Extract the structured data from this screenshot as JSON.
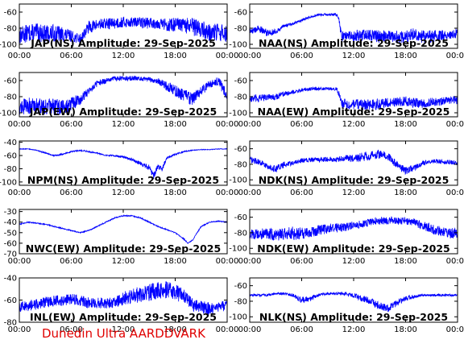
{
  "colors": {
    "trace": "#0000ff",
    "axis": "#000000",
    "footer": "#e00000"
  },
  "footer": {
    "label": "Dunedin Ultra AARDDVARK"
  },
  "x_ticks": [
    "00:00",
    "06:00",
    "12:00",
    "18:00",
    "00:00"
  ],
  "chart_data": [
    {
      "type": "line",
      "title": "JAP(NS) Amplitude: 29-Sep-2025",
      "xlim": [
        0,
        24
      ],
      "ylim": [
        -105,
        -50
      ],
      "y_ticks": [
        -60,
        -80,
        -100
      ],
      "x": [
        0,
        1,
        2,
        3,
        4,
        5,
        6,
        7,
        8,
        9,
        10,
        11,
        12,
        13,
        14,
        15,
        16,
        17,
        18,
        19,
        20,
        21,
        22,
        23,
        24
      ],
      "values": [
        -88,
        -85,
        -84,
        -86,
        -85,
        -87,
        -89,
        -93,
        -78,
        -75,
        -74,
        -73,
        -72,
        -72,
        -72,
        -73,
        -73,
        -75,
        -75,
        -76,
        -77,
        -80,
        -85,
        -84,
        -86
      ],
      "noise": [
        22,
        22,
        22,
        22,
        22,
        20,
        14,
        12,
        16,
        14,
        14,
        14,
        14,
        12,
        14,
        14,
        14,
        16,
        18,
        20,
        22,
        22,
        22,
        22,
        22
      ]
    },
    {
      "type": "line",
      "title": "NAA(NS) Amplitude: 29-Sep-2025",
      "xlim": [
        0,
        24
      ],
      "ylim": [
        -105,
        -50
      ],
      "y_ticks": [
        -60,
        -80,
        -100
      ],
      "x": [
        0,
        1,
        2,
        3,
        4,
        5,
        6,
        7,
        8,
        9,
        10,
        10.3,
        10.6,
        11,
        12,
        13,
        14,
        15,
        16,
        17,
        18,
        19,
        20,
        21,
        22,
        23,
        24
      ],
      "values": [
        -84,
        -80,
        -85,
        -84,
        -77,
        -74,
        -70,
        -66,
        -63,
        -63,
        -63,
        -68,
        -90,
        -88,
        -89,
        -88,
        -88,
        -90,
        -88,
        -90,
        -90,
        -86,
        -90,
        -90,
        -88,
        -88,
        -85
      ],
      "noise": [
        8,
        8,
        10,
        6,
        4,
        4,
        3,
        3,
        3,
        3,
        3,
        6,
        14,
        12,
        14,
        14,
        14,
        16,
        14,
        16,
        16,
        14,
        16,
        16,
        14,
        12,
        12
      ]
    },
    {
      "type": "line",
      "title": "JAP(EW) Amplitude: 29-Sep-2025",
      "xlim": [
        0,
        24
      ],
      "ylim": [
        -105,
        -50
      ],
      "y_ticks": [
        -60,
        -80,
        -100
      ],
      "x": [
        0,
        1,
        2,
        3,
        4,
        5,
        6,
        7,
        8,
        9,
        10,
        11,
        12,
        13,
        14,
        15,
        16,
        17,
        18,
        19,
        20,
        21,
        22,
        23,
        24
      ],
      "values": [
        -92,
        -90,
        -90,
        -91,
        -92,
        -92,
        -88,
        -83,
        -72,
        -63,
        -60,
        -57,
        -57,
        -57,
        -57,
        -58,
        -60,
        -66,
        -72,
        -78,
        -82,
        -72,
        -64,
        -60,
        -78
      ],
      "noise": [
        20,
        20,
        20,
        20,
        20,
        20,
        18,
        14,
        10,
        8,
        6,
        6,
        6,
        6,
        6,
        6,
        8,
        12,
        14,
        16,
        16,
        12,
        10,
        10,
        20
      ]
    },
    {
      "type": "line",
      "title": "NAA(EW) Amplitude: 29-Sep-2025",
      "xlim": [
        0,
        24
      ],
      "ylim": [
        -105,
        -50
      ],
      "y_ticks": [
        -60,
        -80,
        -100
      ],
      "x": [
        0,
        1,
        2,
        3,
        4,
        5,
        6,
        7,
        8,
        9,
        10,
        10.3,
        10.6,
        11,
        12,
        13,
        14,
        15,
        16,
        17,
        18,
        19,
        20,
        21,
        22,
        23,
        24
      ],
      "values": [
        -82,
        -82,
        -80,
        -80,
        -76,
        -74,
        -72,
        -70,
        -70,
        -70,
        -70,
        -76,
        -88,
        -88,
        -89,
        -89,
        -89,
        -88,
        -87,
        -86,
        -85,
        -87,
        -88,
        -86,
        -86,
        -84,
        -84
      ],
      "noise": [
        10,
        10,
        8,
        8,
        6,
        5,
        5,
        4,
        4,
        4,
        4,
        8,
        12,
        12,
        12,
        14,
        14,
        14,
        12,
        12,
        12,
        12,
        12,
        10,
        10,
        10,
        10
      ]
    },
    {
      "type": "line",
      "title": "NPM(NS) Amplitude: 29-Sep-2025",
      "xlim": [
        0,
        24
      ],
      "ylim": [
        -105,
        -38
      ],
      "y_ticks": [
        -40,
        -60,
        -80,
        -100
      ],
      "x": [
        0,
        1,
        2,
        3,
        4,
        5,
        6,
        7,
        8,
        9,
        10,
        11,
        12,
        13,
        14,
        15,
        15.5,
        16,
        16.5,
        17,
        18,
        19,
        20,
        21,
        22,
        23,
        24
      ],
      "values": [
        -50,
        -50,
        -52,
        -56,
        -60,
        -58,
        -54,
        -52,
        -54,
        -56,
        -60,
        -60,
        -62,
        -66,
        -72,
        -78,
        -90,
        -76,
        -80,
        -64,
        -58,
        -54,
        -52,
        -51,
        -51,
        -50,
        -50
      ],
      "noise": [
        1,
        1,
        1,
        2,
        2,
        2,
        2,
        2,
        2,
        2,
        2,
        3,
        3,
        4,
        6,
        8,
        10,
        8,
        8,
        4,
        2,
        2,
        1,
        1,
        1,
        1,
        1
      ]
    },
    {
      "type": "line",
      "title": "NDK(NS) Amplitude: 29-Sep-2025",
      "xlim": [
        0,
        24
      ],
      "ylim": [
        -107,
        -50
      ],
      "y_ticks": [
        -60,
        -80,
        -100
      ],
      "x": [
        0,
        1,
        2,
        3,
        4,
        5,
        6,
        7,
        8,
        9,
        10,
        11,
        12,
        13,
        14,
        15,
        16,
        17,
        18,
        19,
        20,
        21,
        22,
        23,
        24
      ],
      "values": [
        -74,
        -76,
        -82,
        -86,
        -80,
        -78,
        -75,
        -74,
        -74,
        -73,
        -74,
        -72,
        -72,
        -70,
        -68,
        -66,
        -70,
        -80,
        -88,
        -84,
        -78,
        -76,
        -76,
        -77,
        -78
      ],
      "noise": [
        8,
        8,
        8,
        10,
        8,
        6,
        6,
        6,
        6,
        6,
        6,
        8,
        10,
        12,
        12,
        12,
        10,
        10,
        10,
        8,
        6,
        6,
        6,
        6,
        6
      ]
    },
    {
      "type": "line",
      "title": "NWC(EW) Amplitude: 29-Sep-2025",
      "xlim": [
        0,
        24
      ],
      "ylim": [
        -70,
        -28
      ],
      "y_ticks": [
        -30,
        -40,
        -50,
        -60,
        -70
      ],
      "x": [
        0,
        1,
        2,
        3,
        4,
        5,
        6,
        7,
        8,
        9,
        10,
        11,
        12,
        13,
        14,
        15,
        16,
        17,
        18,
        19,
        19.5,
        20,
        21,
        22,
        23,
        24
      ],
      "values": [
        -42,
        -40,
        -41,
        -42,
        -44,
        -46,
        -48,
        -50,
        -48,
        -44,
        -40,
        -36,
        -34,
        -34,
        -36,
        -40,
        -44,
        -47,
        -50,
        -56,
        -60,
        -57,
        -44,
        -40,
        -39,
        -40
      ],
      "noise": [
        1,
        1,
        1,
        1,
        1,
        1,
        1,
        1,
        1,
        1,
        1,
        1,
        1,
        1,
        1,
        1,
        1,
        1,
        1,
        1,
        1,
        1,
        1,
        1,
        1,
        1
      ]
    },
    {
      "type": "line",
      "title": "NDK(EW) Amplitude: 29-Sep-2025",
      "xlim": [
        0,
        24
      ],
      "ylim": [
        -107,
        -50
      ],
      "y_ticks": [
        -60,
        -80,
        -100
      ],
      "x": [
        0,
        1,
        2,
        3,
        4,
        5,
        6,
        7,
        8,
        9,
        10,
        11,
        12,
        13,
        14,
        15,
        16,
        17,
        18,
        19,
        20,
        21,
        22,
        23,
        24
      ],
      "values": [
        -80,
        -82,
        -80,
        -82,
        -80,
        -80,
        -80,
        -78,
        -76,
        -74,
        -73,
        -72,
        -70,
        -68,
        -66,
        -64,
        -64,
        -64,
        -64,
        -66,
        -70,
        -74,
        -78,
        -80,
        -80
      ],
      "noise": [
        14,
        16,
        14,
        16,
        16,
        18,
        16,
        14,
        14,
        12,
        12,
        12,
        10,
        10,
        10,
        10,
        10,
        10,
        10,
        10,
        12,
        12,
        14,
        14,
        14
      ]
    },
    {
      "type": "line",
      "title": "INL(EW) Amplitude: 29-Sep-2025",
      "xlim": [
        0,
        24
      ],
      "ylim": [
        -80,
        -40
      ],
      "y_ticks": [
        -40,
        -60,
        -80
      ],
      "x": [
        0,
        1,
        2,
        3,
        4,
        5,
        6,
        7,
        8,
        9,
        10,
        11,
        12,
        13,
        14,
        15,
        16,
        17,
        18,
        19,
        20,
        21,
        22,
        23,
        24
      ],
      "values": [
        -65,
        -65,
        -63,
        -62,
        -60,
        -60,
        -58,
        -60,
        -62,
        -62,
        -62,
        -62,
        -58,
        -56,
        -54,
        -52,
        -50,
        -50,
        -52,
        -56,
        -64,
        -66,
        -67,
        -65,
        -65
      ],
      "noise": [
        10,
        10,
        10,
        10,
        10,
        10,
        10,
        10,
        10,
        10,
        10,
        10,
        12,
        14,
        14,
        16,
        16,
        16,
        14,
        14,
        12,
        12,
        12,
        10,
        10
      ]
    },
    {
      "type": "line",
      "title": "NLK(NS) Amplitude: 29-Sep-2025",
      "xlim": [
        0,
        24
      ],
      "ylim": [
        -107,
        -50
      ],
      "y_ticks": [
        -60,
        -80,
        -100
      ],
      "x": [
        0,
        1,
        2,
        3,
        4,
        5,
        6,
        7,
        8,
        9,
        10,
        11,
        12,
        13,
        14,
        15,
        16,
        17,
        18,
        19,
        20,
        21,
        22,
        23,
        24
      ],
      "values": [
        -72,
        -72,
        -72,
        -70,
        -70,
        -72,
        -78,
        -76,
        -72,
        -70,
        -70,
        -70,
        -72,
        -76,
        -80,
        -86,
        -88,
        -82,
        -76,
        -74,
        -72,
        -72,
        -72,
        -72,
        -72
      ],
      "noise": [
        3,
        3,
        3,
        3,
        3,
        4,
        8,
        6,
        4,
        3,
        3,
        4,
        6,
        8,
        10,
        10,
        10,
        8,
        6,
        4,
        3,
        3,
        3,
        3,
        3
      ]
    }
  ]
}
